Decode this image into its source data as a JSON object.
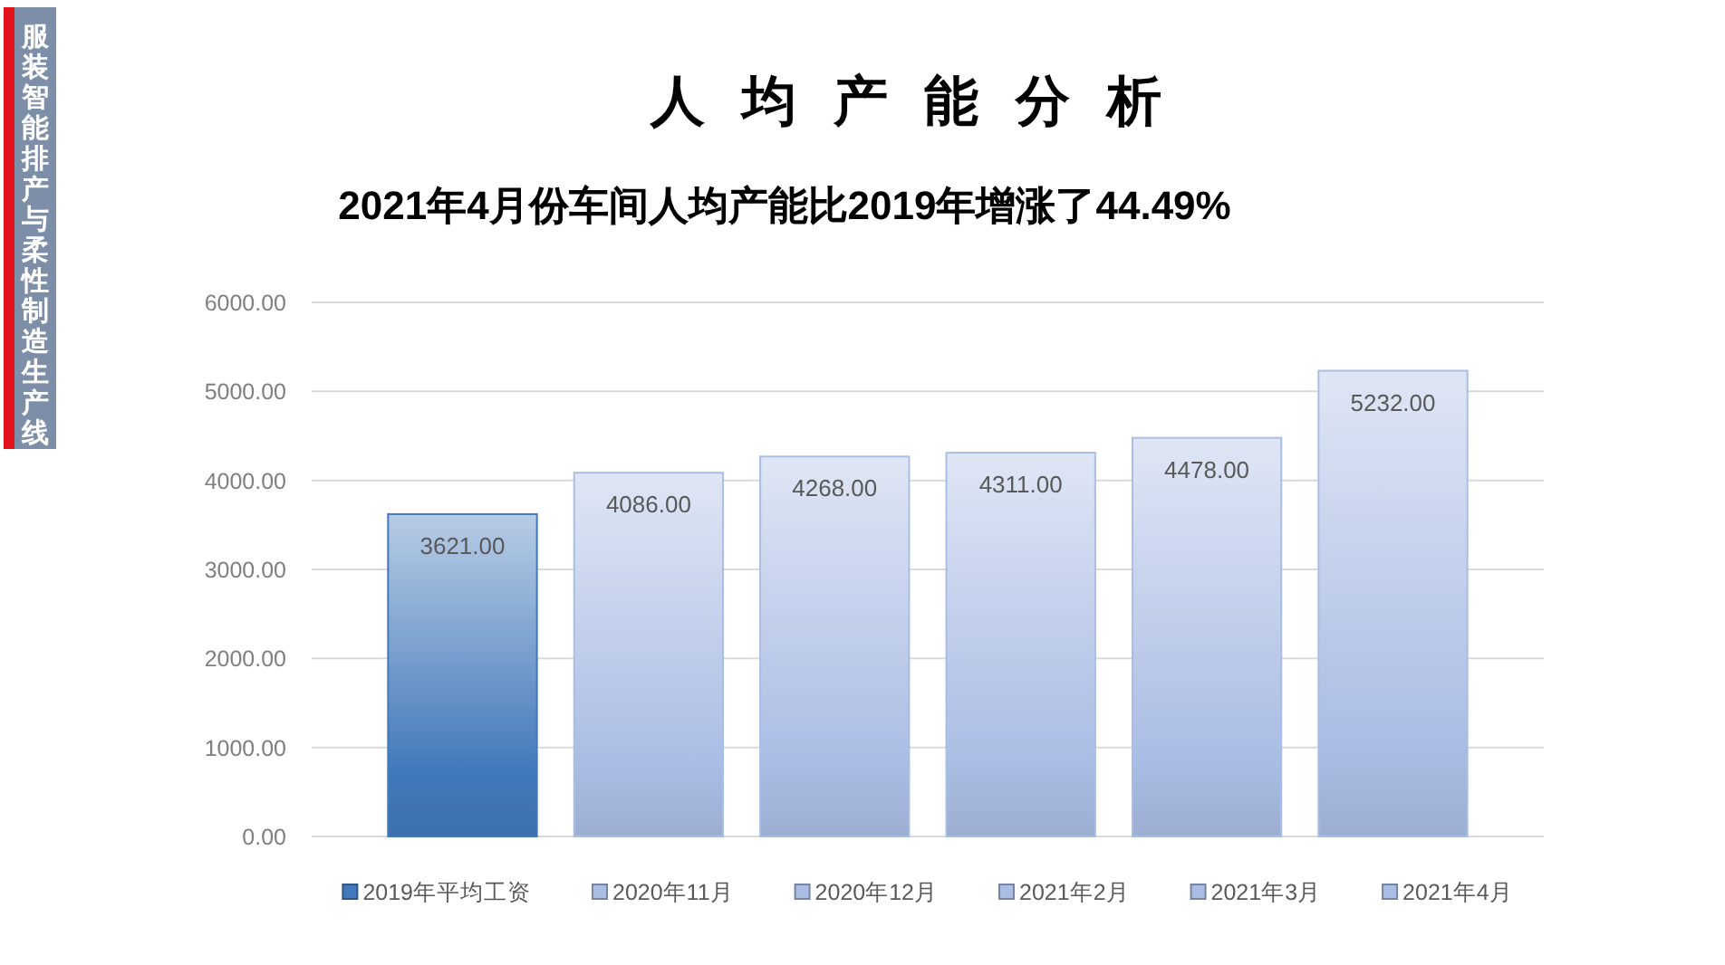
{
  "chart_data": {
    "type": "bar",
    "title": "人 均 产 能 分 析",
    "subtitle": "2021年4月份车间人均产能比2019年增涨了44.49%",
    "annotations": [
      "服装智能排产与柔性制造生产线"
    ],
    "categories": [
      null
    ],
    "series": [
      {
        "name": "2019年平均工资",
        "color": "#4279bb",
        "values": [
          3621
        ],
        "value_labels": [
          "3621.00"
        ]
      },
      {
        "name": "2020年11月",
        "color": "#aabde4",
        "values": [
          4086
        ],
        "value_labels": [
          "4086.00"
        ]
      },
      {
        "name": "2020年12月",
        "color": "#aabde4",
        "values": [
          4268
        ],
        "value_labels": [
          "4268.00"
        ]
      },
      {
        "name": "2021年2月",
        "color": "#aabde4",
        "values": [
          4311
        ],
        "value_labels": [
          "4311.00"
        ]
      },
      {
        "name": "2021年3月",
        "color": "#aabde4",
        "values": [
          4478
        ],
        "value_labels": [
          "4478.00"
        ]
      },
      {
        "name": "2021年4月",
        "color": "#aabde4",
        "values": [
          5232
        ],
        "value_labels": [
          "5232.00"
        ]
      }
    ],
    "ylim": [
      0,
      6000
    ],
    "yticks": [
      {
        "value": 0,
        "label": "0.00"
      },
      {
        "value": 1000,
        "label": "1000.00"
      },
      {
        "value": 2000,
        "label": "2000.00"
      },
      {
        "value": 3000,
        "label": "3000.00"
      },
      {
        "value": 4000,
        "label": "4000.00"
      },
      {
        "value": 5000,
        "label": "5000.00"
      },
      {
        "value": 6000,
        "label": "6000.00"
      }
    ],
    "grid": "y",
    "legend": "bottom"
  }
}
